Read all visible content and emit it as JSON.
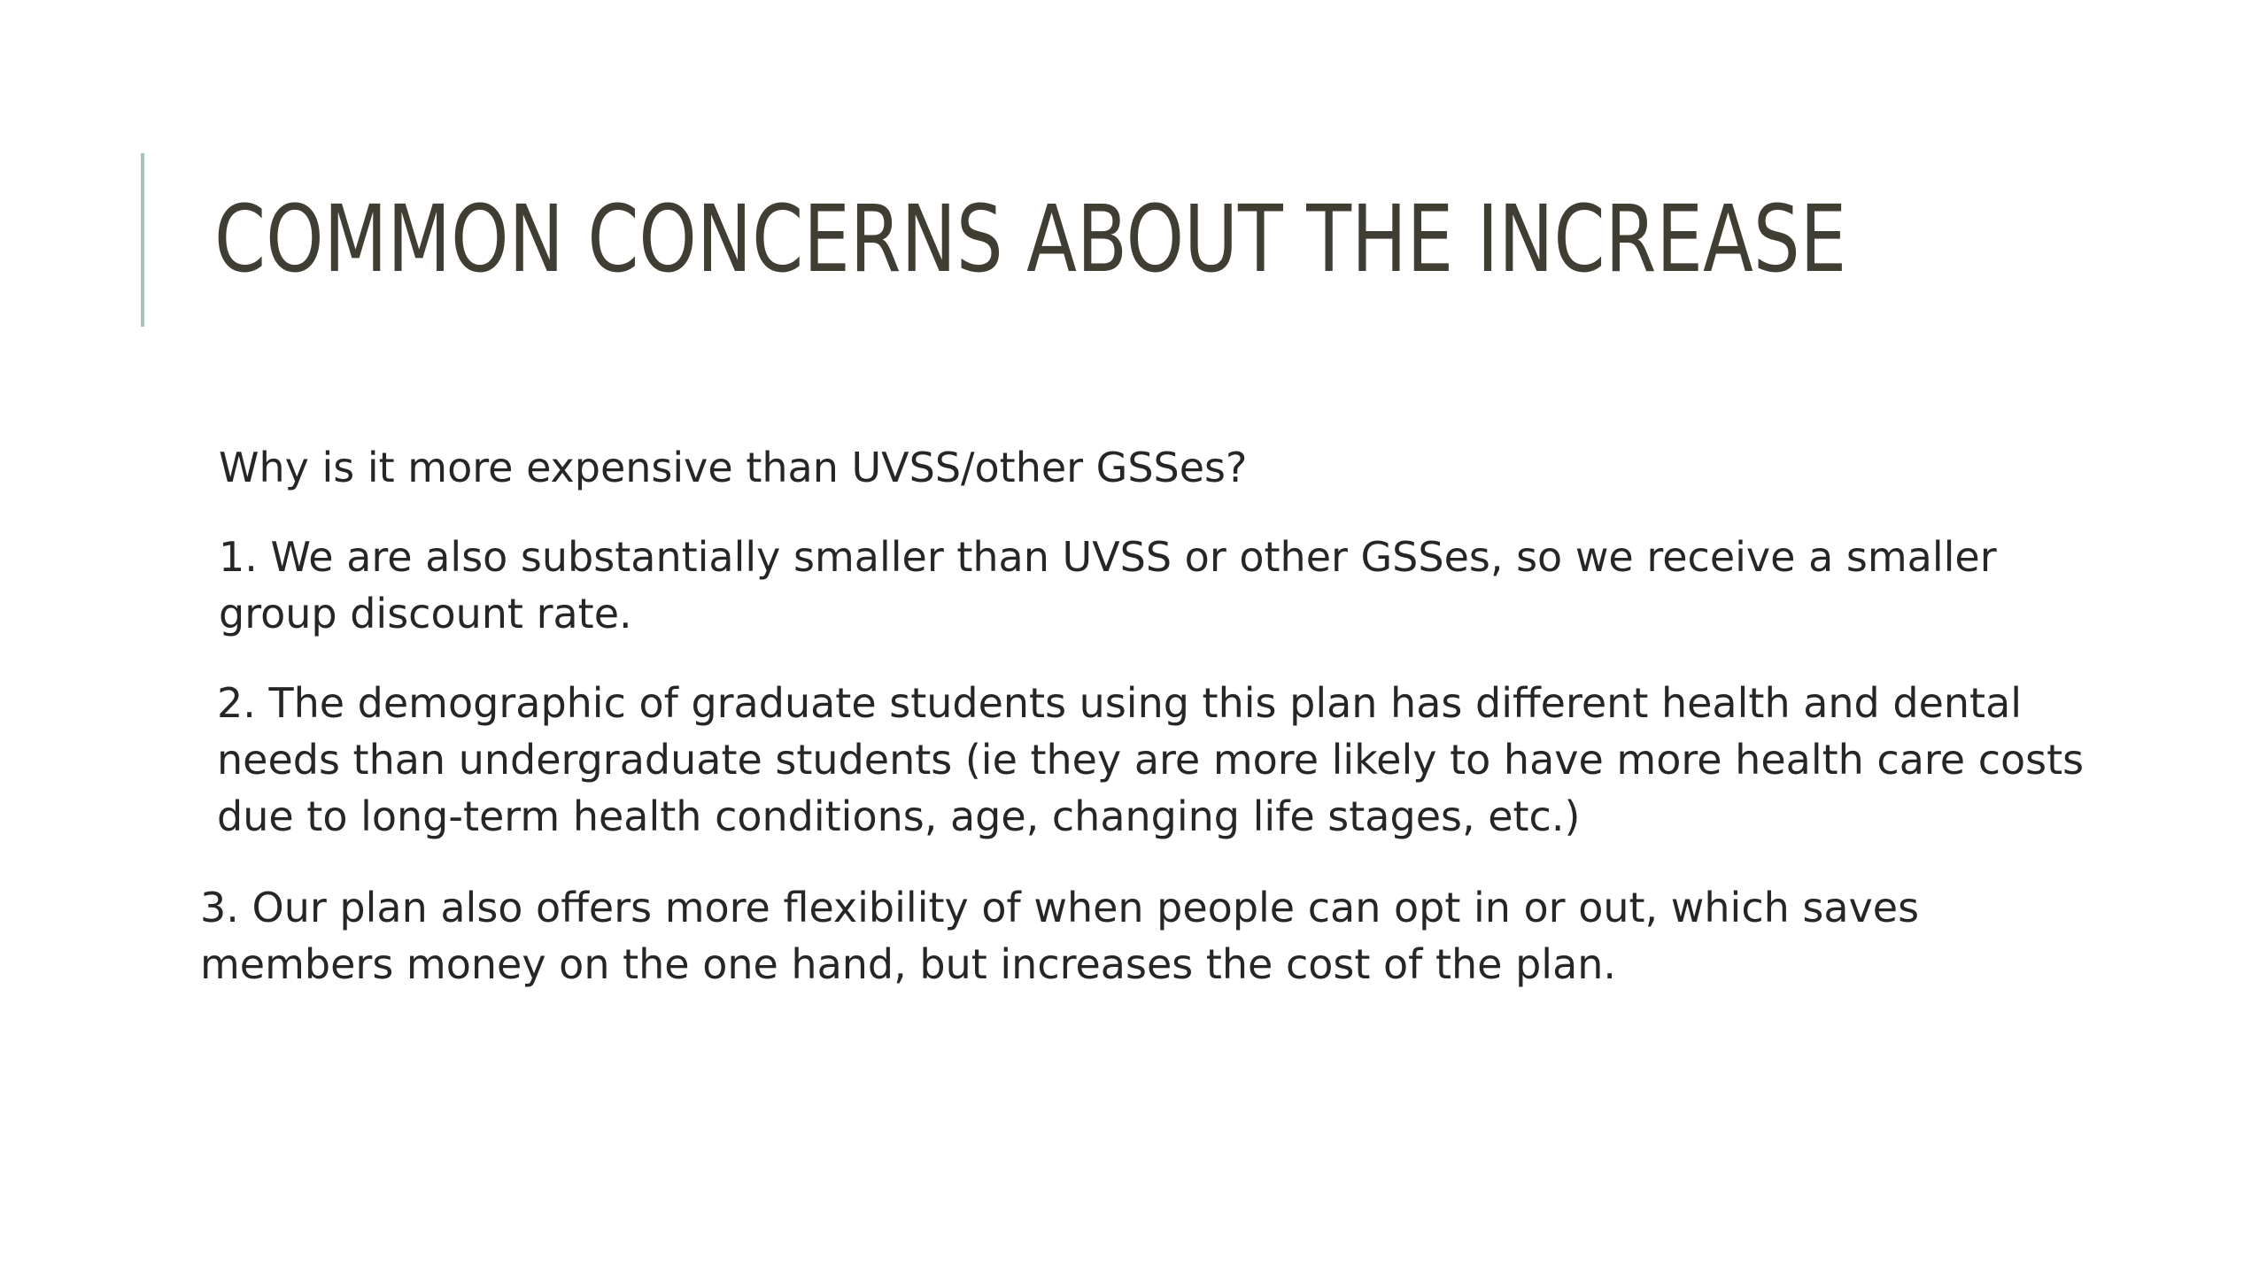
{
  "slide": {
    "title": "COMMON CONCERNS ABOUT THE INCREASE",
    "question": "Why is it more expensive than UVSS/other GSSes?",
    "points": [
      "1. We are also substantially smaller than UVSS or other GSSes, so we receive a smaller group discount rate.",
      "2. The demographic of graduate students using this plan has different health and dental needs than undergraduate students (ie they are more likely to have more health care costs due to long-term health conditions, age, changing life stages, etc.)",
      "3. Our plan also offers more flexibility of when people can opt in or out, which saves members money on the one hand, but increases the cost of the plan."
    ]
  },
  "colors": {
    "title": "#403d33",
    "body": "#262626",
    "accent": "#a9c3bd",
    "background": "#ffffff"
  }
}
